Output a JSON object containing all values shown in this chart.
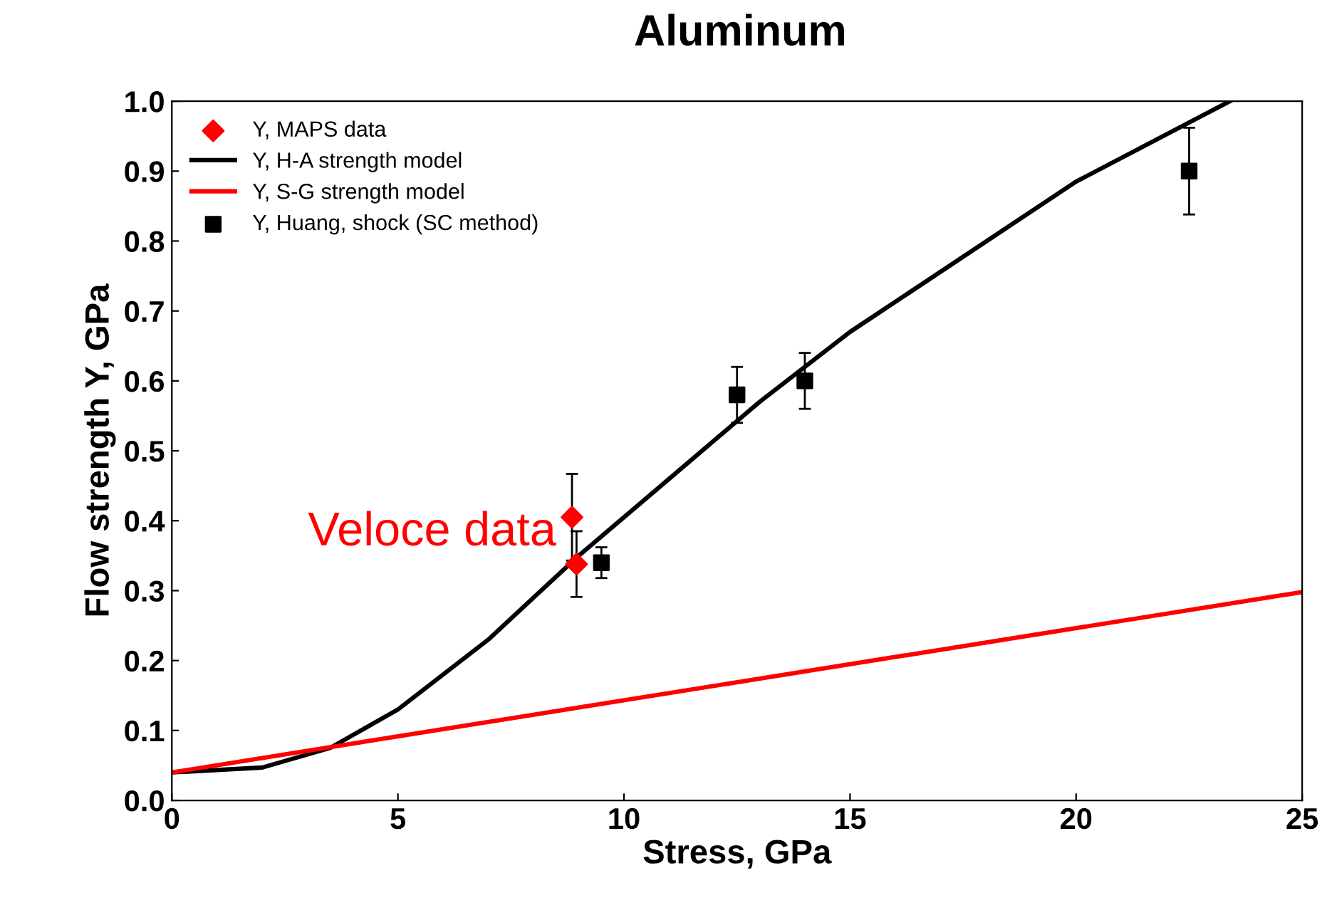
{
  "chart_data": {
    "type": "line",
    "title": "Aluminum",
    "xlabel": "Stress, GPa",
    "ylabel": "Flow strength Y, GPa",
    "xlim": [
      0,
      25
    ],
    "xticks": [
      0,
      5,
      10,
      15,
      20,
      25
    ],
    "ylim": [
      0,
      1
    ],
    "yticks": [
      {
        "value": 0,
        "label": "0.0"
      },
      0.1,
      0.2,
      0.3,
      0.4,
      0.5,
      0.6,
      0.7,
      0.8,
      0.9,
      {
        "value": 1,
        "label": "1.0"
      }
    ],
    "grid": false,
    "legend": "top left",
    "series": [
      {
        "name": "Y, MAPS data",
        "type": "scatter",
        "marker": "diamond",
        "color": "#ff0000",
        "x": [
          8.85,
          8.95
        ],
        "values": [
          0.405,
          0.338
        ],
        "errors": [
          0.062,
          0.047
        ]
      },
      {
        "name": "Y, H-A strength model",
        "marker": "none",
        "color": "#000000",
        "x": [
          0,
          2,
          3.5,
          5,
          7,
          9,
          11,
          13,
          15,
          20,
          23.4
        ],
        "values": [
          0.04,
          0.047,
          0.075,
          0.13,
          0.23,
          0.35,
          0.46,
          0.57,
          0.67,
          0.885,
          1.0
        ]
      },
      {
        "name": "Y, S-G strength model",
        "marker": "none",
        "color": "#ff0000",
        "x": [
          0,
          25
        ],
        "values": [
          0.04,
          0.298
        ]
      },
      {
        "name": "Y, Huang, shock (SC method)",
        "type": "scatter",
        "marker": "square",
        "color": "#000000",
        "x": [
          9.5,
          12.5,
          14,
          22.5
        ],
        "values": [
          0.34,
          0.58,
          0.6,
          0.9
        ],
        "errors": [
          0.022,
          0.04,
          0.04,
          0.062
        ]
      }
    ],
    "annotations": [
      {
        "text": "Veloce data",
        "x": 8.85,
        "y": 0.405
      }
    ]
  }
}
